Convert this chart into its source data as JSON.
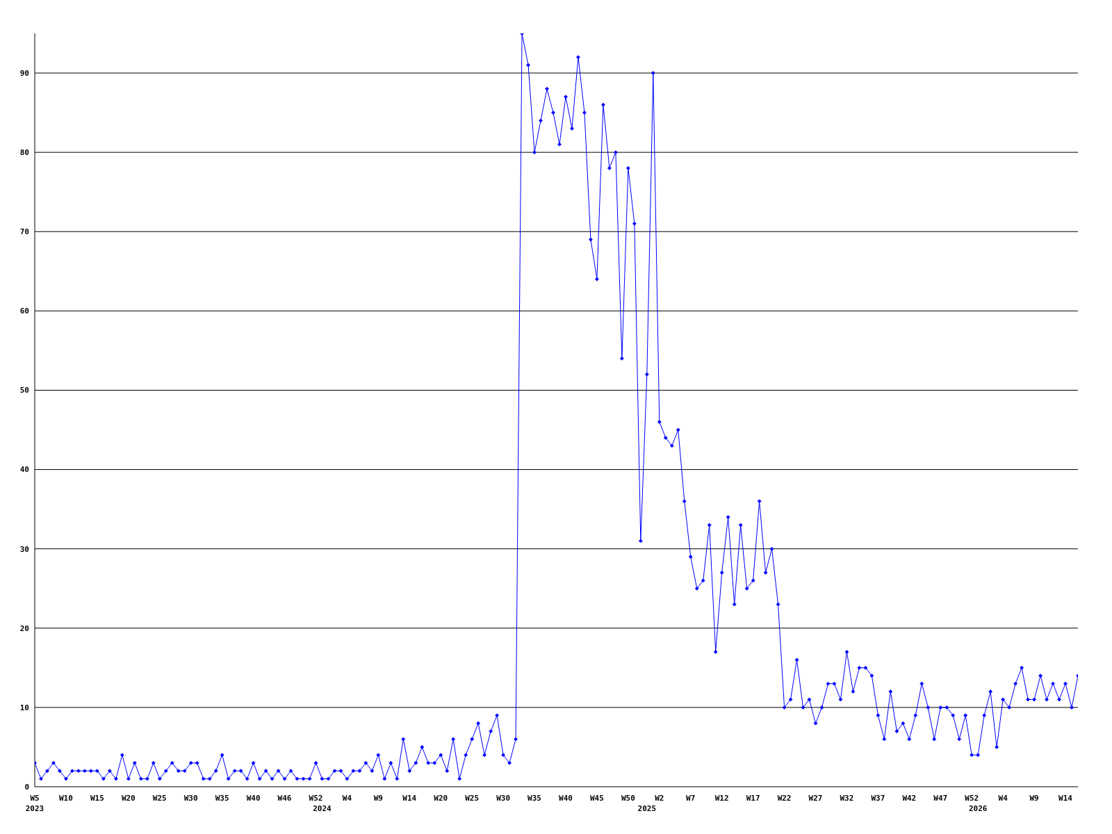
{
  "chart_data": {
    "type": "line",
    "color": "#0000ff",
    "marker": "diamond",
    "grid": "y",
    "ylim": [
      0,
      95
    ],
    "yticks": [
      0,
      10,
      20,
      30,
      40,
      50,
      60,
      70,
      80,
      90
    ],
    "categories": [
      "W5\n2023",
      null,
      null,
      null,
      null,
      "W10",
      null,
      null,
      null,
      null,
      "W15",
      null,
      null,
      null,
      null,
      "W20",
      null,
      null,
      null,
      null,
      "W25",
      null,
      null,
      null,
      null,
      "W30",
      null,
      null,
      null,
      null,
      "W35",
      null,
      null,
      null,
      null,
      "W40",
      null,
      null,
      null,
      null,
      "W46",
      null,
      null,
      null,
      null,
      "W52",
      "\n2024",
      null,
      null,
      null,
      "W4",
      null,
      null,
      null,
      null,
      "W9",
      null,
      null,
      null,
      null,
      "W14",
      null,
      null,
      null,
      null,
      "W20",
      null,
      null,
      null,
      null,
      "W25",
      null,
      null,
      null,
      null,
      "W30",
      null,
      null,
      null,
      null,
      "W35",
      null,
      null,
      null,
      null,
      "W40",
      null,
      null,
      null,
      null,
      "W45",
      null,
      null,
      null,
      null,
      "W50",
      null,
      null,
      "\n2025",
      null,
      "W2",
      null,
      null,
      null,
      null,
      "W7",
      null,
      null,
      null,
      null,
      "W12",
      null,
      null,
      null,
      null,
      "W17",
      null,
      null,
      null,
      null,
      "W22",
      null,
      null,
      null,
      null,
      "W27",
      null,
      null,
      null,
      null,
      "W32",
      null,
      null,
      null,
      null,
      "W37",
      null,
      null,
      null,
      null,
      "W42",
      null,
      null,
      null,
      null,
      "W47",
      null,
      null,
      null,
      null,
      "W52",
      "\n2026",
      null,
      null,
      null,
      "W4",
      null,
      null,
      null,
      null,
      "W9",
      null,
      null,
      null,
      null,
      "W14",
      null,
      null
    ],
    "values": [
      3,
      1,
      2,
      3,
      2,
      1,
      2,
      2,
      2,
      2,
      2,
      1,
      2,
      1,
      4,
      1,
      3,
      1,
      1,
      3,
      1,
      2,
      3,
      2,
      2,
      3,
      3,
      1,
      1,
      2,
      4,
      1,
      2,
      2,
      1,
      3,
      1,
      2,
      1,
      2,
      1,
      2,
      1,
      1,
      1,
      3,
      1,
      1,
      2,
      2,
      1,
      2,
      2,
      3,
      2,
      4,
      1,
      3,
      1,
      6,
      2,
      3,
      5,
      3,
      3,
      4,
      2,
      6,
      1,
      4,
      6,
      8,
      4,
      7,
      9,
      4,
      3,
      6,
      95,
      91,
      80,
      84,
      88,
      85,
      81,
      87,
      83,
      92,
      85,
      69,
      64,
      86,
      78,
      80,
      54,
      78,
      71,
      31,
      52,
      90,
      46,
      44,
      43,
      45,
      36,
      29,
      25,
      26,
      33,
      17,
      27,
      34,
      23,
      33,
      25,
      26,
      36,
      27,
      30,
      23,
      10,
      11,
      16,
      10,
      11,
      8,
      10,
      13,
      13,
      11,
      17,
      12,
      15,
      15,
      14,
      9,
      6,
      12,
      7,
      8,
      6,
      9,
      13,
      10,
      6,
      10,
      10,
      9,
      6,
      9,
      4,
      4,
      9,
      12,
      5,
      11,
      10,
      13,
      15,
      11,
      11,
      14,
      11,
      13,
      11,
      13,
      10,
      14
    ]
  }
}
